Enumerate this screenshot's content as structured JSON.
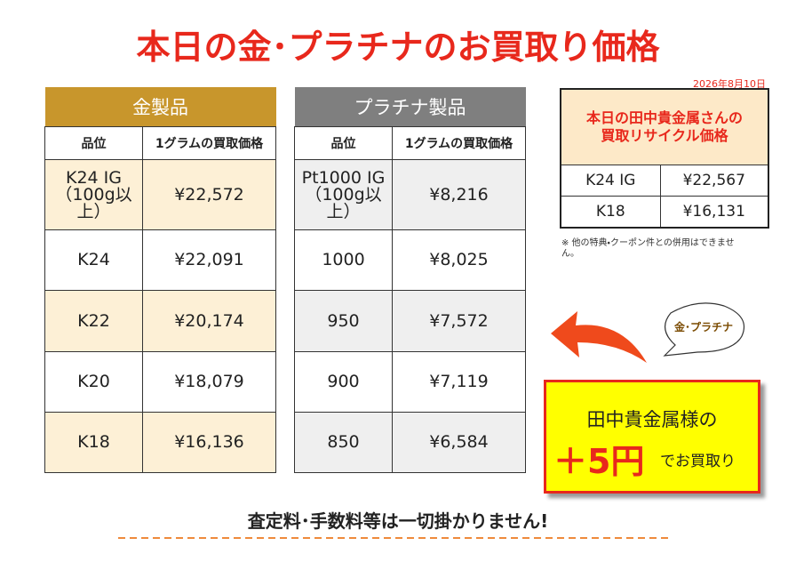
{
  "title": "本日の金･プラチナのお買取り価格",
  "date": "2026年8月10日",
  "gold_table": {
    "title": "金製品",
    "headers": [
      "品位",
      "1グラムの買取価格"
    ],
    "rows": [
      [
        "K24 IG（100g以上）",
        "¥22,572"
      ],
      [
        "K24",
        "¥22,091"
      ],
      [
        "K22",
        "¥20,174"
      ],
      [
        "K20",
        "¥18,079"
      ],
      [
        "K18",
        "¥16,136"
      ]
    ]
  },
  "platinum_table": {
    "title": "プラチナ製品",
    "headers": [
      "品位",
      "1グラムの買取価格"
    ],
    "rows": [
      [
        "Pt1000 IG（100g以上）",
        "¥8,216"
      ],
      [
        "1000",
        "¥8,025"
      ],
      [
        "950",
        "¥7,572"
      ],
      [
        "900",
        "¥7,119"
      ],
      [
        "850",
        "¥6,584"
      ]
    ]
  },
  "reference_table": {
    "title": [
      "本日の田中貴金属さんの",
      "買取リサイクル価格"
    ],
    "rows": [
      [
        "K24 IG",
        "¥22,567"
      ],
      [
        "K18",
        "¥16,131"
      ]
    ]
  },
  "note": "※ 他の特典・クーポン件との併用はできません。",
  "bubble": "金･プラチナ",
  "promo": {
    "line1": "田中貴金属様の",
    "amount": "＋5円",
    "suffix": "でお買取り"
  },
  "footer": "査定料･手数料等は一切掛かりません!"
}
